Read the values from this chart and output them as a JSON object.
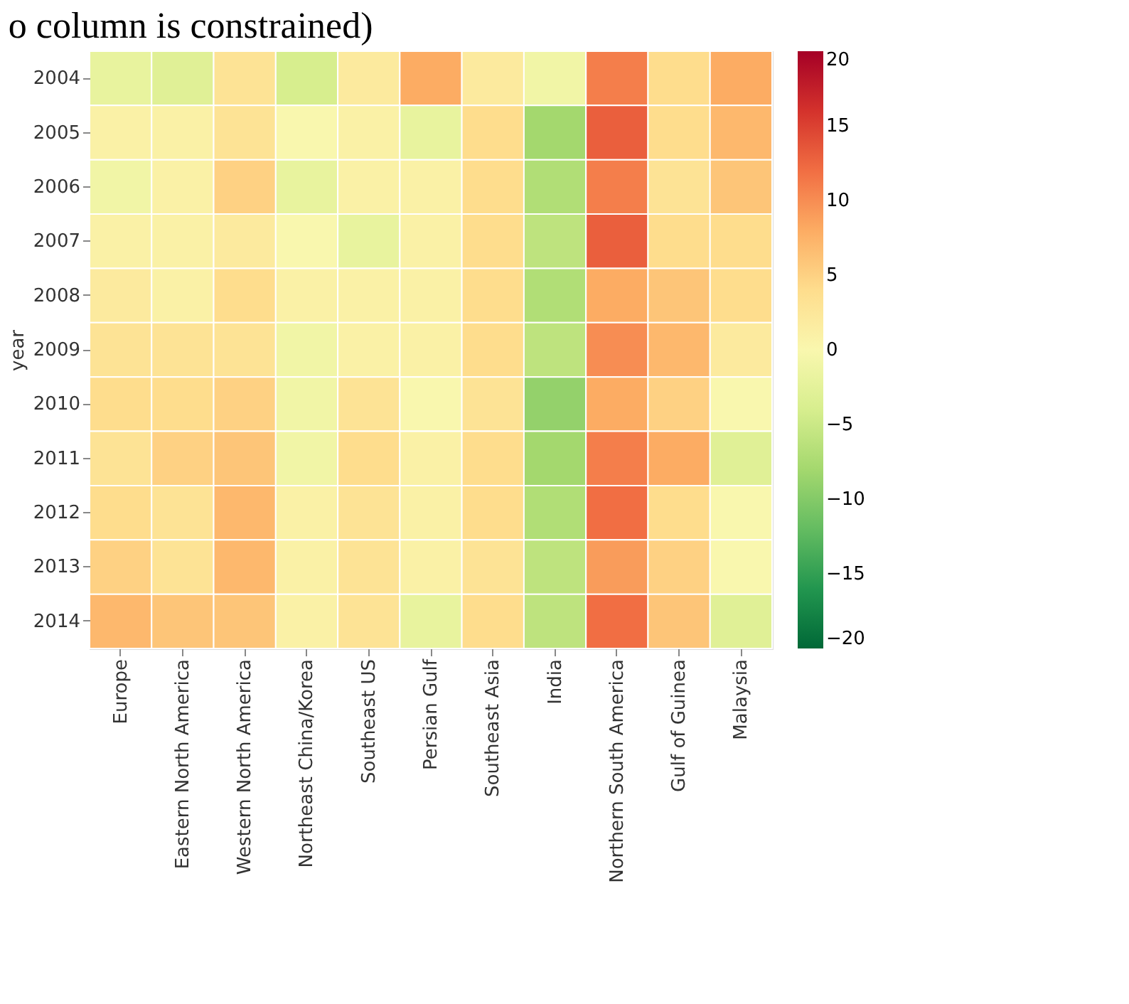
{
  "chart_data": {
    "type": "heatmap",
    "title": "o column is constrained)",
    "ylabel": "year",
    "clim": [
      -20,
      20
    ],
    "cticks": [
      -20,
      -15,
      -10,
      -5,
      0,
      5,
      10,
      15,
      20
    ],
    "categories": [
      "Europe",
      "Eastern North America",
      "Western North America",
      "Northeast China/Korea",
      "Southeast US",
      "Persian Gulf",
      "Southeast Asia",
      "India",
      "Northern South America",
      "Gulf of Guinea",
      "Malaysia"
    ],
    "y_categories": [
      "2004",
      "2005",
      "2006",
      "2007",
      "2008",
      "2009",
      "2010",
      "2011",
      "2012",
      "2013",
      "2014"
    ],
    "cells": [
      [
        -2,
        -3,
        3,
        -4,
        2,
        8,
        2,
        -1,
        11,
        4,
        8
      ],
      [
        1,
        1,
        3,
        0,
        1,
        -2,
        4,
        -8,
        13,
        4,
        7
      ],
      [
        -1,
        1,
        5,
        -2,
        1,
        1,
        4,
        -7,
        11,
        3,
        6
      ],
      [
        1,
        1,
        2,
        0,
        -2,
        1,
        4,
        -6,
        13,
        4,
        4
      ],
      [
        2,
        1,
        4,
        1,
        1,
        1,
        4,
        -7,
        8,
        6,
        4
      ],
      [
        3,
        3,
        3,
        -1,
        1,
        1,
        4,
        -6,
        10,
        7,
        2
      ],
      [
        4,
        4,
        5,
        -1,
        3,
        0,
        3,
        -9,
        8,
        5,
        0
      ],
      [
        3,
        5,
        6,
        -1,
        4,
        1,
        4,
        -8,
        11,
        8,
        -3
      ],
      [
        4,
        3,
        7,
        1,
        3,
        1,
        4,
        -7,
        12,
        4,
        0
      ],
      [
        5,
        3,
        7,
        1,
        3,
        1,
        3,
        -6,
        9,
        5,
        0
      ],
      [
        7,
        6,
        6,
        1,
        3,
        -2,
        4,
        -6,
        12,
        6,
        -3
      ]
    ]
  }
}
